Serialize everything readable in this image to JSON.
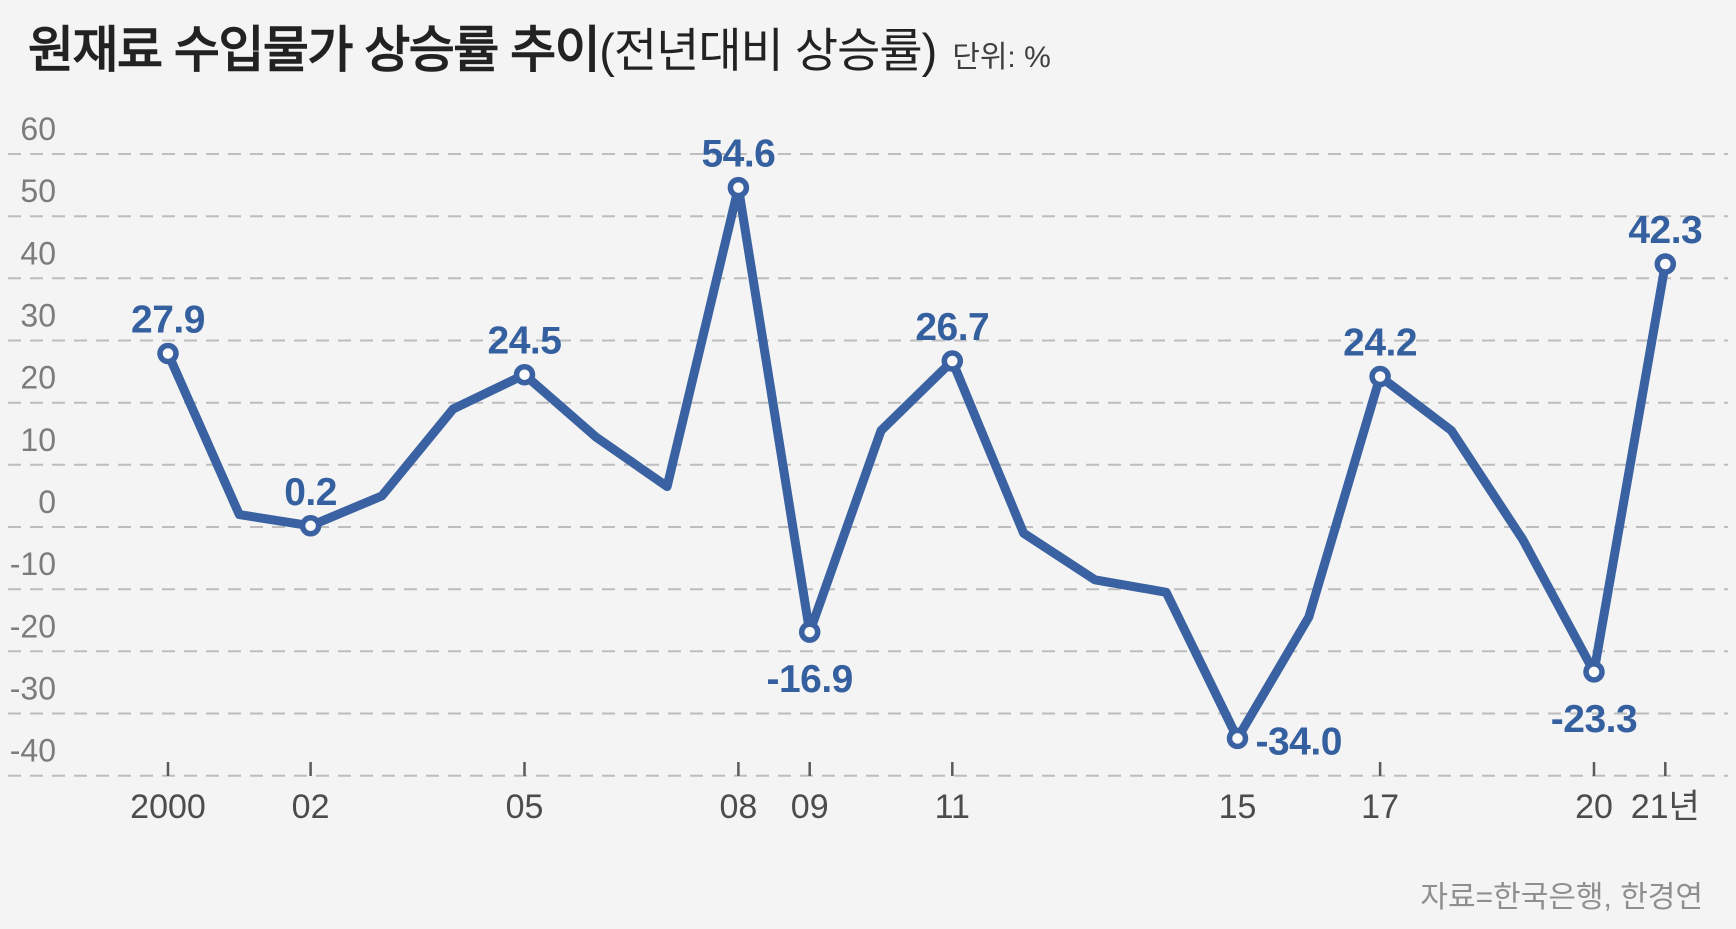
{
  "title": {
    "main": "원재료 수입물가 상승률 추이",
    "paren": "(전년대비 상승률)",
    "unit": "단위: %"
  },
  "source": "자료=한국은행, 한경연",
  "colors": {
    "background": "#f4f4f4",
    "line": "#3a62a2",
    "label": "#35609f",
    "grid": "#bdbdbd",
    "axis_text": "#7c7c7c",
    "x_axis_text": "#4c4c4c",
    "tick": "#5a5a5a",
    "title_text": "#222222",
    "unit_text": "#3f3f3f",
    "source_text": "#8f8f8f",
    "marker_fill": "#fafafa"
  },
  "chart_data": {
    "type": "line",
    "title": "원재료 수입물가 상승률 추이(전년대비 상승률)",
    "unit": "%",
    "xlabel": "",
    "ylabel": "",
    "ylim": [
      -40,
      60
    ],
    "grid": "horizontal-dashed",
    "legend": "none",
    "x": [
      2000,
      2001,
      2002,
      2003,
      2004,
      2005,
      2006,
      2007,
      2008,
      2009,
      2010,
      2011,
      2012,
      2013,
      2014,
      2015,
      2016,
      2017,
      2018,
      2019,
      2020,
      2021
    ],
    "values": [
      27.9,
      2.0,
      0.2,
      5.0,
      19.0,
      24.5,
      14.5,
      6.5,
      54.6,
      -16.9,
      15.5,
      26.7,
      -1.0,
      -8.5,
      -10.5,
      -34.0,
      -14.5,
      24.2,
      15.5,
      -2.0,
      -23.3,
      42.3
    ],
    "yticks": [
      60,
      50,
      40,
      30,
      20,
      10,
      0,
      -10,
      -20,
      -30,
      -40
    ],
    "xtick_labels": [
      {
        "year": 2000,
        "label": "2000",
        "tick": true
      },
      {
        "year": 2002,
        "label": "02",
        "tick": true
      },
      {
        "year": 2005,
        "label": "05",
        "tick": true
      },
      {
        "year": 2008,
        "label": "08",
        "tick": true
      },
      {
        "year": 2009,
        "label": "09",
        "tick": true
      },
      {
        "year": 2011,
        "label": "11",
        "tick": true
      },
      {
        "year": 2015,
        "label": "15",
        "tick": false
      },
      {
        "year": 2017,
        "label": "17",
        "tick": true
      },
      {
        "year": 2020,
        "label": "20",
        "tick": true
      },
      {
        "year": 2021,
        "label": "21년",
        "tick": true
      }
    ],
    "point_labels": [
      {
        "year": 2000,
        "text": "27.9",
        "placement": "above"
      },
      {
        "year": 2002,
        "text": "0.2",
        "placement": "above"
      },
      {
        "year": 2005,
        "text": "24.5",
        "placement": "above"
      },
      {
        "year": 2008,
        "text": "54.6",
        "placement": "above"
      },
      {
        "year": 2009,
        "text": "-16.9",
        "placement": "below"
      },
      {
        "year": 2011,
        "text": "26.7",
        "placement": "above"
      },
      {
        "year": 2015,
        "text": "-34.0",
        "placement": "right"
      },
      {
        "year": 2017,
        "text": "24.2",
        "placement": "above"
      },
      {
        "year": 2020,
        "text": "-23.3",
        "placement": "below"
      },
      {
        "year": 2021,
        "text": "42.3",
        "placement": "above"
      }
    ]
  }
}
